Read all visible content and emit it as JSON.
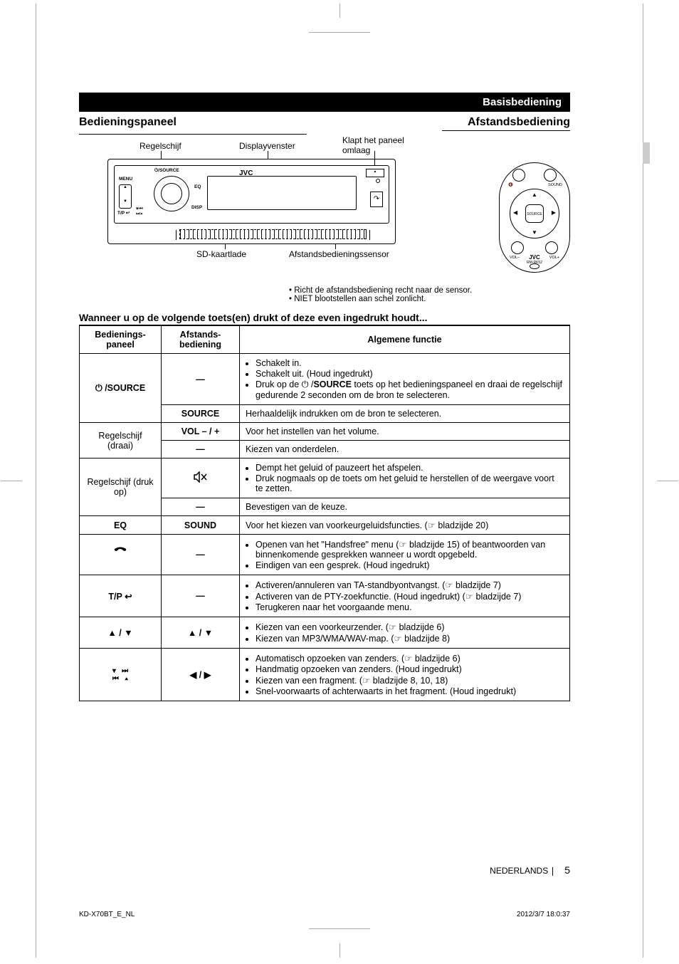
{
  "header": {
    "section_title": "Basisbediening"
  },
  "panel": {
    "title": "Bedieningspaneel",
    "callout_dial": "Regelschijf",
    "callout_display": "Displayvenster",
    "callout_flip": "Klapt het paneel omlaag",
    "callout_sd": "SD-kaartlade",
    "callout_sensor": "Afstandsbedieningssensor",
    "unit_labels": {
      "menu": "MENU",
      "source": "⏻/SOURCE",
      "jvc": "JVC",
      "eq": "EQ",
      "disp": "DISP",
      "tp": "T/P ↩"
    },
    "notes": [
      "Richt de afstandsbediening recht naar de sensor.",
      "NIET blootstellen aan schel zonlicht."
    ]
  },
  "remote": {
    "title": "Afstandsbediening",
    "labels": {
      "mute": "🔇",
      "sound": "SOUND",
      "source": "SOURCE",
      "volm": "VOL–",
      "volp": "VOL+",
      "jvc": "JVC",
      "model": "RM-RK52"
    }
  },
  "subhead": "Wanneer u op de volgende toets(en) drukt of deze even ingedrukt houdt...",
  "table": {
    "headers": {
      "c1": "Bedienings-\npaneel",
      "c2": "Afstands-\nbediening",
      "c3": "Algemene functie"
    },
    "rows": [
      {
        "c1": "⏻ /SOURCE",
        "c2": "—",
        "c3_list": [
          "Schakelt in.",
          "Schakelt uit. (Houd ingedrukt)",
          "Druk op de ⏻ /<b>SOURCE</b> toets op het bedieningspaneel en draai de regelschijf gedurende 2 seconden om de bron te selecteren."
        ],
        "c1_rowspan": 2
      },
      {
        "c2": "SOURCE",
        "c3": "Herhaaldelijk indrukken om de bron te selecteren."
      },
      {
        "c1": "Regelschijf (draai)",
        "c1_normal": true,
        "c2": "VOL – / +",
        "c3": "Voor het instellen van het volume.",
        "c1_rowspan": 2
      },
      {
        "c2": "—",
        "c3": "Kiezen van onderdelen."
      },
      {
        "c1": "Regelschijf (druk op)",
        "c1_normal": true,
        "c2": "mute-icon",
        "c3_list": [
          "Dempt het geluid of pauzeert het afspelen.",
          "Druk nogmaals op de toets om het geluid te herstellen of de weergave voort te zetten."
        ],
        "c1_rowspan": 2
      },
      {
        "c2": "—",
        "c3": "Bevestigen van de keuze."
      },
      {
        "c1": "EQ",
        "c2": "SOUND",
        "c3": "Voor het kiezen van voorkeurgeluidsfuncties. (☞ bladzijde 20)"
      },
      {
        "c1": "phone-icon",
        "c2": "—",
        "c3_list": [
          "Openen van het \"Handsfree\" menu (☞ bladzijde 15) of beantwoorden van binnenkomende gesprekken wanneer u wordt opgebeld.",
          "Eindigen van een gesprek. (Houd ingedrukt)"
        ]
      },
      {
        "c1": "T/P ↩",
        "c2": "—",
        "c3_list": [
          "Activeren/annuleren van TA-standbyontvangst. (☞ bladzijde 7)",
          "Activeren van de PTY-zoekfunctie. (Houd ingedrukt) (☞ bladzijde 7)",
          "Terugkeren naar het voorgaande menu."
        ]
      },
      {
        "c1": "▲ / ▼",
        "c2": "▲ / ▼",
        "c3_list": [
          "Kiezen van een voorkeurzender. (☞ bladzijde 6)",
          "Kiezen van MP3/WMA/WAV-map. (☞ bladzijde 8)"
        ]
      },
      {
        "c1": "skip-icons",
        "c2": "◀ / ▶",
        "c3_list": [
          "Automatisch opzoeken van zenders. (☞ bladzijde 6)",
          "Handmatig opzoeken van zenders. (Houd ingedrukt)",
          "Kiezen van een fragment. (☞ bladzijde 8, 10, 18)",
          "Snel-voorwaarts of achterwaarts in het fragment. (Houd ingedrukt)"
        ]
      }
    ]
  },
  "footer": {
    "lang": "NEDERLANDS",
    "page": "5",
    "doc": "KD-X70BT_E_NL",
    "date": "2012/3/7   18:0:37"
  }
}
